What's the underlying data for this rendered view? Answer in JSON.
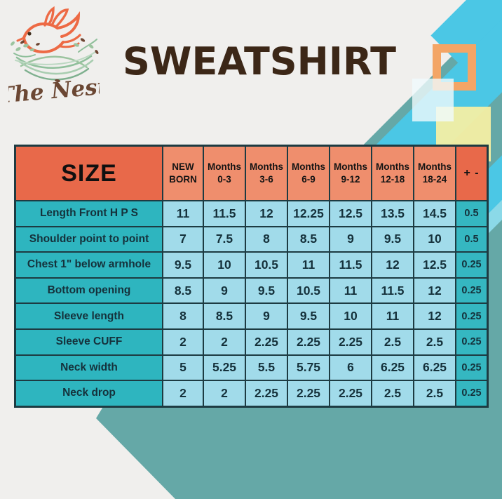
{
  "brand": {
    "name": "The Nest"
  },
  "title": "SWEATSHIRT",
  "chart_data": {
    "type": "table",
    "title": "SWEATSHIRT",
    "corner_label": "SIZE",
    "tolerance_label": "+ -",
    "columns": [
      "NEW BORN",
      "Months 0-3",
      "Months 3-6",
      "Months 6-9",
      "Months 9-12",
      "Months 12-18",
      "Months 18-24"
    ],
    "rows": [
      {
        "label": "Length Front H P S",
        "values": [
          "11",
          "11.5",
          "12",
          "12.25",
          "12.5",
          "13.5",
          "14.5"
        ],
        "tolerance": "0.5"
      },
      {
        "label": "Shoulder point to point",
        "values": [
          "7",
          "7.5",
          "8",
          "8.5",
          "9",
          "9.5",
          "10"
        ],
        "tolerance": "0.5"
      },
      {
        "label": "Chest 1\" below armhole",
        "values": [
          "9.5",
          "10",
          "10.5",
          "11",
          "11.5",
          "12",
          "12.5"
        ],
        "tolerance": "0.25"
      },
      {
        "label": "Bottom opening",
        "values": [
          "8.5",
          "9",
          "9.5",
          "10.5",
          "11",
          "11.5",
          "12"
        ],
        "tolerance": "0.25"
      },
      {
        "label": "Sleeve length",
        "values": [
          "8",
          "8.5",
          "9",
          "9.5",
          "10",
          "11",
          "12"
        ],
        "tolerance": "0.25"
      },
      {
        "label": "Sleeve CUFF",
        "values": [
          "2",
          "2",
          "2.25",
          "2.25",
          "2.25",
          "2.5",
          "2.5"
        ],
        "tolerance": "0.25"
      },
      {
        "label": "Neck width",
        "values": [
          "5",
          "5.25",
          "5.5",
          "5.75",
          "6",
          "6.25",
          "6.25"
        ],
        "tolerance": "0.25"
      },
      {
        "label": "Neck drop",
        "values": [
          "2",
          "2",
          "2.25",
          "2.25",
          "2.25",
          "2.5",
          "2.5"
        ],
        "tolerance": "0.25"
      }
    ]
  },
  "colors": {
    "page_background": "#f0efed",
    "title_brown": "#3c2717",
    "header_orange": "#e8694a",
    "header_salmon": "#ef8e6d",
    "label_teal": "#2eb5bf",
    "value_blue": "#a1dbea",
    "tolerance_teal": "#35b7c1",
    "grid_line": "#1d3b42",
    "decor_teal": "#65a8a7",
    "decor_cyan": "#4bc7e5",
    "decor_yellow": "#f7f0a4",
    "decor_square_orange": "#f3a566",
    "logo_bird_orange": "#ed6a45",
    "logo_nest_green": "#9cc49f",
    "logo_text_brown": "#6b4733"
  }
}
